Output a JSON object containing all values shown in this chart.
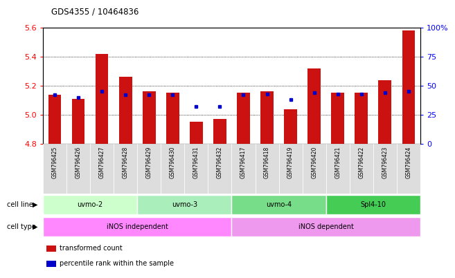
{
  "title": "GDS4355 / 10464836",
  "samples": [
    "GSM796425",
    "GSM796426",
    "GSM796427",
    "GSM796428",
    "GSM796429",
    "GSM796430",
    "GSM796431",
    "GSM796432",
    "GSM796417",
    "GSM796418",
    "GSM796419",
    "GSM796420",
    "GSM796421",
    "GSM796422",
    "GSM796423",
    "GSM796424"
  ],
  "transformed_count": [
    5.14,
    5.11,
    5.42,
    5.26,
    5.16,
    5.15,
    4.95,
    4.97,
    5.15,
    5.16,
    5.04,
    5.32,
    5.15,
    5.15,
    5.24,
    5.58
  ],
  "percentile_rank": [
    42,
    40,
    45,
    42,
    42,
    42,
    32,
    32,
    42,
    43,
    38,
    44,
    43,
    43,
    44,
    45
  ],
  "cell_lines": [
    {
      "label": "uvmo-2",
      "start": 0,
      "end": 4,
      "color": "#ccffcc"
    },
    {
      "label": "uvmo-3",
      "start": 4,
      "end": 8,
      "color": "#aaeebb"
    },
    {
      "label": "uvmo-4",
      "start": 8,
      "end": 12,
      "color": "#77dd88"
    },
    {
      "label": "Spl4-10",
      "start": 12,
      "end": 16,
      "color": "#44cc55"
    }
  ],
  "cell_types": [
    {
      "label": "iNOS independent",
      "start": 0,
      "end": 8,
      "color": "#ff88ff"
    },
    {
      "label": "iNOS dependent",
      "start": 8,
      "end": 16,
      "color": "#ee99ee"
    }
  ],
  "ymin": 4.8,
  "ymax": 5.6,
  "yticks": [
    4.8,
    5.0,
    5.2,
    5.4,
    5.6
  ],
  "right_yticks": [
    0,
    25,
    50,
    75,
    100
  ],
  "bar_color": "#cc1111",
  "dot_color": "#0000cc",
  "bar_width": 0.55,
  "label_bg_color": "#dddddd"
}
